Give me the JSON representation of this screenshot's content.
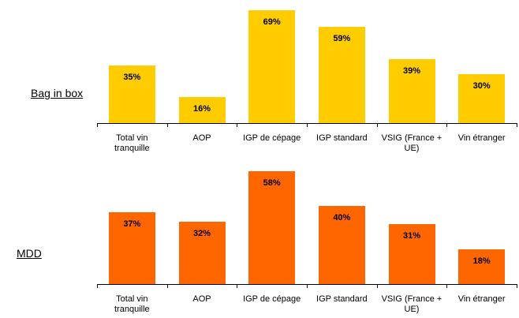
{
  "chart_data": [
    {
      "type": "bar",
      "title": "Bag in box",
      "categories": [
        "Total vin tranquille",
        "AOP",
        "IGP de cépage",
        "IGP standard",
        "VSIG (France + UE)",
        "Vin étranger"
      ],
      "values": [
        35,
        16,
        69,
        59,
        39,
        30
      ],
      "value_labels": [
        "35%",
        "16%",
        "69%",
        "59%",
        "39%",
        "30%"
      ],
      "color": "#ffcc00"
    },
    {
      "type": "bar",
      "title": "MDD",
      "categories": [
        "Total vin tranquille",
        "AOP",
        "IGP de cépage",
        "IGP standard",
        "VSIG (France + UE)",
        "Vin étranger"
      ],
      "values": [
        37,
        32,
        58,
        40,
        31,
        18
      ],
      "value_labels": [
        "37%",
        "32%",
        "58%",
        "40%",
        "31%",
        "18%"
      ],
      "color": "#ff6600"
    }
  ]
}
